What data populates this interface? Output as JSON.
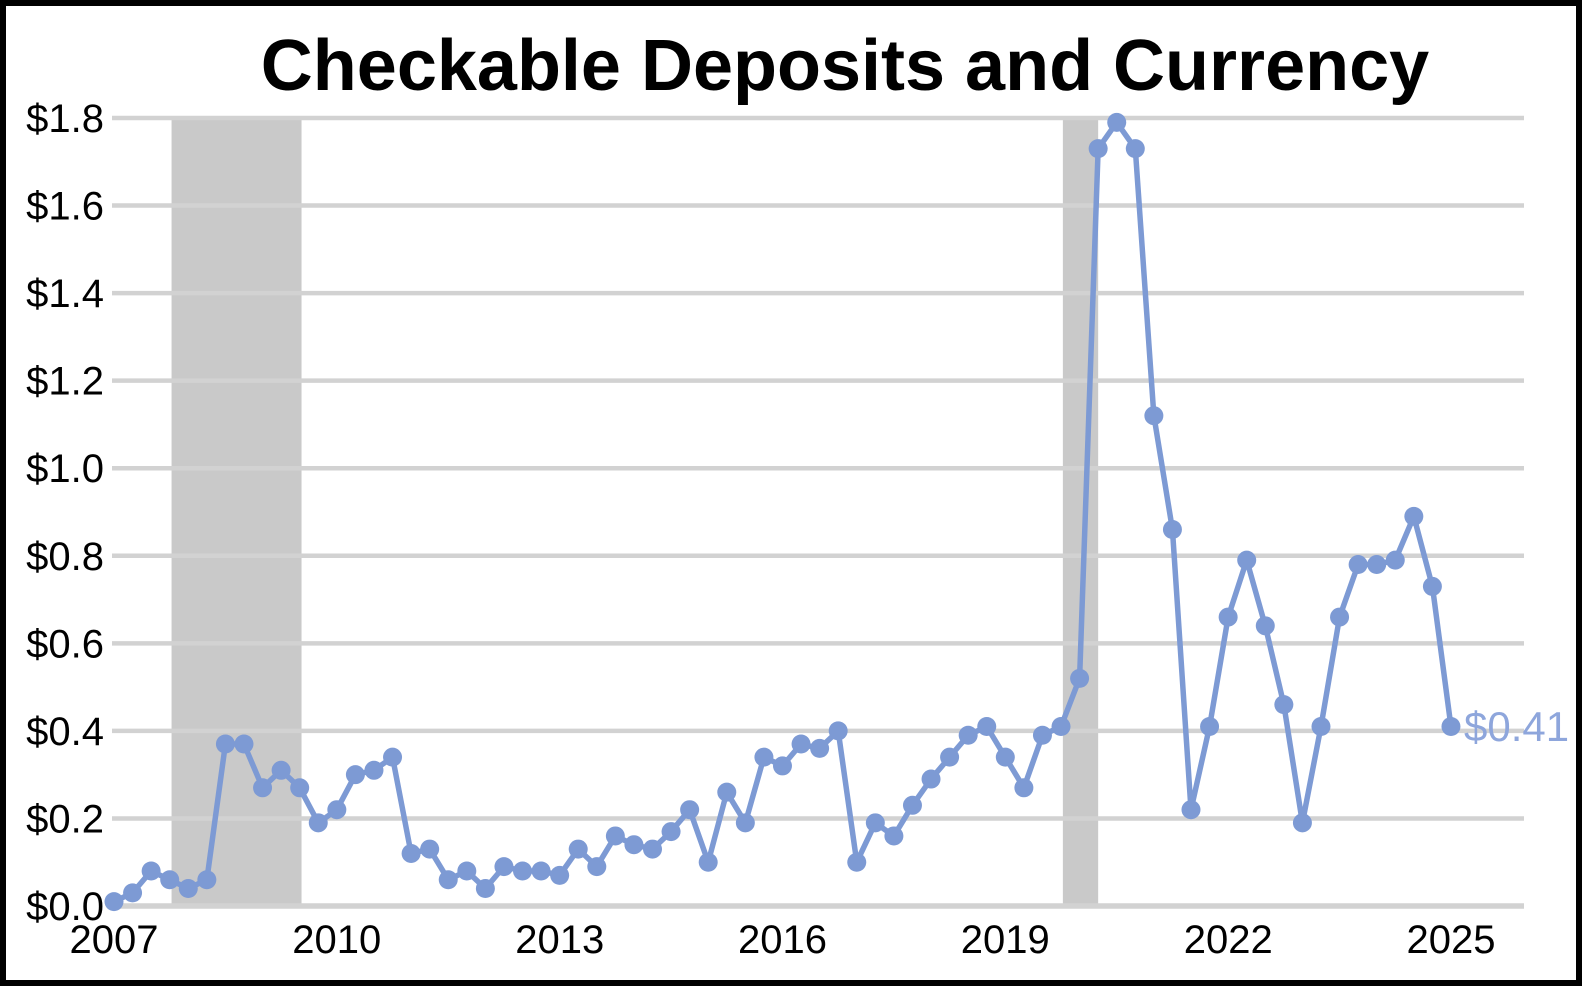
{
  "chart_data": {
    "type": "line",
    "title": "Checkable Deposits and Currency",
    "y_tick_labels": [
      "$0.0",
      "$0.2",
      "$0.4",
      "$0.6",
      "$0.8",
      "$1.0",
      "$1.2",
      "$1.4",
      "$1.6",
      "$1.8"
    ],
    "ylim": [
      0,
      1.8
    ],
    "ytick_step": 0.2,
    "grid": true,
    "legend": false,
    "frequency": "quarterly",
    "x_start": "2007Q1",
    "x_end": "2025Q1",
    "x_year_ticks": [
      {
        "label": "2007",
        "index": 0
      },
      {
        "label": "2010",
        "index": 12
      },
      {
        "label": "2013",
        "index": 24
      },
      {
        "label": "2016",
        "index": 36
      },
      {
        "label": "2019",
        "index": 48
      },
      {
        "label": "2022",
        "index": 60
      },
      {
        "label": "2025",
        "index": 72
      }
    ],
    "values": [
      0.01,
      0.03,
      0.08,
      0.06,
      0.04,
      0.06,
      0.37,
      0.37,
      0.27,
      0.31,
      0.27,
      0.19,
      0.22,
      0.3,
      0.31,
      0.34,
      0.12,
      0.13,
      0.06,
      0.08,
      0.04,
      0.09,
      0.08,
      0.08,
      0.07,
      0.13,
      0.09,
      0.16,
      0.14,
      0.13,
      0.17,
      0.22,
      0.1,
      0.26,
      0.19,
      0.34,
      0.32,
      0.37,
      0.36,
      0.4,
      0.1,
      0.19,
      0.16,
      0.23,
      0.29,
      0.34,
      0.39,
      0.41,
      0.34,
      0.27,
      0.39,
      0.41,
      0.52,
      1.73,
      1.79,
      1.73,
      1.12,
      0.86,
      0.22,
      0.41,
      0.66,
      0.79,
      0.64,
      0.46,
      0.19,
      0.41,
      0.66,
      0.78,
      0.78,
      0.79,
      0.89,
      0.73,
      0.41
    ],
    "recession_bands": [
      {
        "from_index": 3.1,
        "to_index": 10.1
      },
      {
        "from_index": 51.1,
        "to_index": 53.0
      }
    ],
    "end_label": "$0.41"
  },
  "colors": {
    "line": "#7D9AD4",
    "marker": "#7D9AD4",
    "end_label": "#8EA6DC",
    "gridline": "#D2D2D2",
    "recession_band": "#C9C9C9",
    "title_text": "#000000",
    "axis_text": "#000000",
    "background": "#FFFFFF",
    "frame": "#000000"
  }
}
